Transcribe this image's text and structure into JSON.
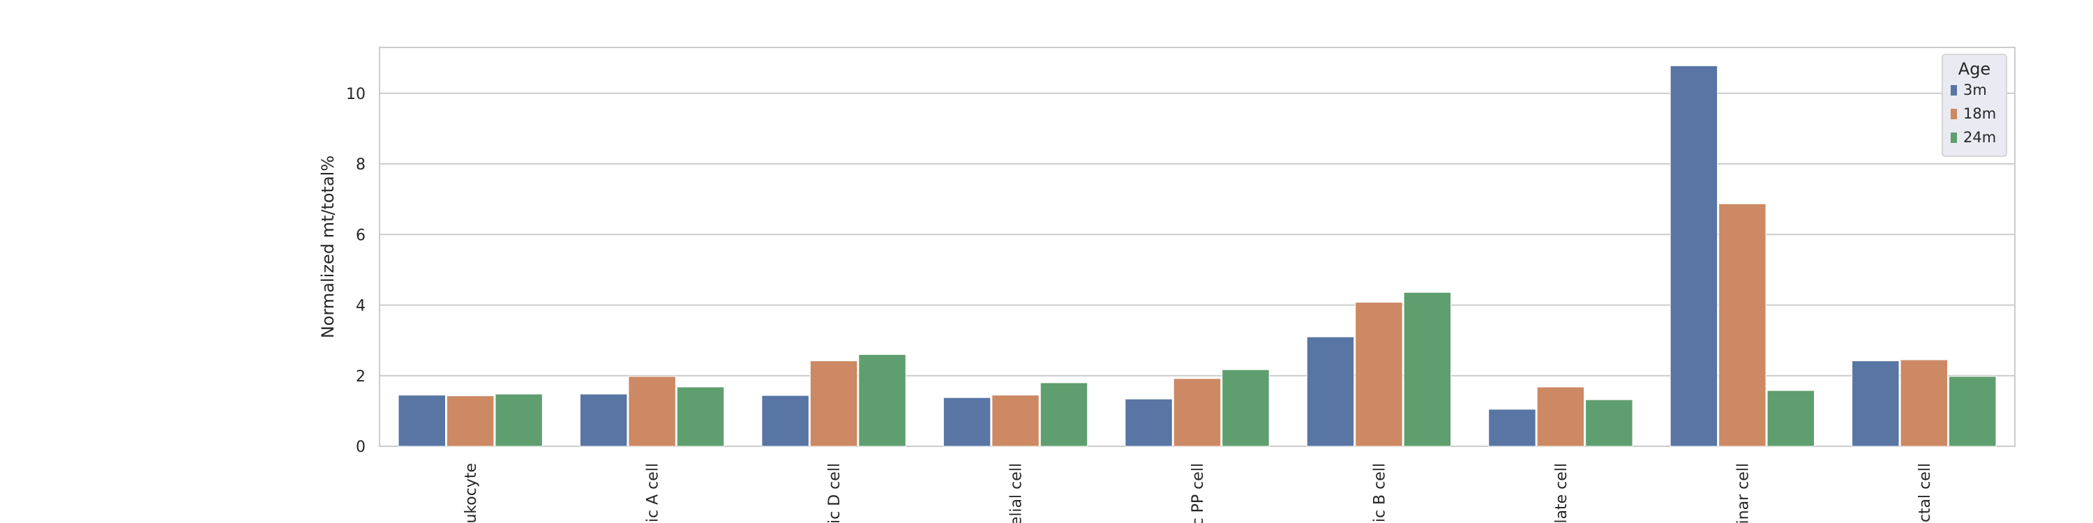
{
  "chart_data": {
    "type": "bar",
    "ylabel": "Normalized mt/total%",
    "xlabel": "",
    "ylim": [
      0,
      11.3
    ],
    "yticks": [
      0,
      2,
      4,
      6,
      8,
      10
    ],
    "grid": true,
    "categories": [
      "ukocyte",
      "ic A cell",
      "ic D cell",
      "elial cell",
      "c PP cell",
      "ic B cell",
      "late cell",
      "inar cell",
      "ctal cell"
    ],
    "series": [
      {
        "name": "3m",
        "color": "#5875a4",
        "values": [
          1.45,
          1.48,
          1.44,
          1.38,
          1.34,
          3.1,
          1.05,
          10.78,
          2.42
        ]
      },
      {
        "name": "18m",
        "color": "#cc8963",
        "values": [
          1.43,
          1.98,
          2.42,
          1.45,
          1.92,
          4.08,
          1.68,
          6.87,
          2.45
        ]
      },
      {
        "name": "24m",
        "color": "#5f9e6e",
        "values": [
          1.48,
          1.68,
          2.6,
          1.8,
          2.17,
          4.36,
          1.32,
          1.58,
          1.98
        ]
      }
    ],
    "legend": {
      "title": "Age",
      "position": "top-right"
    }
  }
}
